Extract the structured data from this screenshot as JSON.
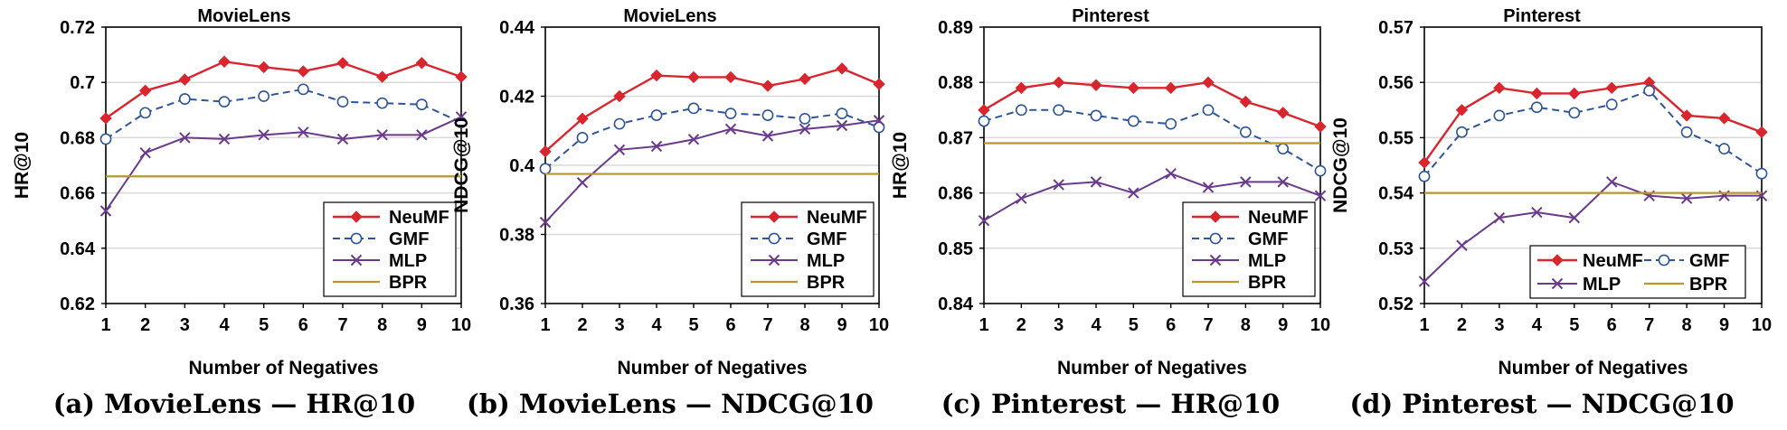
{
  "colors": {
    "neumf": "#d9262e",
    "gmf": "#2e5597",
    "mlp": "#6a3a8c",
    "bpr": "#b8962e"
  },
  "chart_data": [
    {
      "type": "line",
      "title": "MovieLens",
      "caption": "(a) MovieLens — HR@10",
      "xlabel": "Number of Negatives",
      "ylabel": "HR@10",
      "categories": [
        "1",
        "2",
        "3",
        "4",
        "5",
        "6",
        "7",
        "8",
        "9",
        "10"
      ],
      "ylim": [
        0.62,
        0.72
      ],
      "yticks": [
        "0.62",
        "0.64",
        "0.66",
        "0.68",
        "0.7",
        "0.72"
      ],
      "grid": true,
      "legend": "bottom-right",
      "legend_layout": "column",
      "series": [
        {
          "name": "NeuMF",
          "values": [
            0.687,
            0.697,
            0.701,
            0.7075,
            0.7055,
            0.704,
            0.707,
            0.702,
            0.707,
            0.702
          ]
        },
        {
          "name": "GMF",
          "values": [
            0.6795,
            0.689,
            0.694,
            0.693,
            0.695,
            0.6975,
            0.693,
            0.6925,
            0.692,
            0.6855
          ]
        },
        {
          "name": "MLP",
          "values": [
            0.6535,
            0.6745,
            0.68,
            0.6795,
            0.681,
            0.682,
            0.6795,
            0.681,
            0.681,
            0.6875
          ]
        },
        {
          "name": "BPR",
          "value": 0.666
        }
      ]
    },
    {
      "type": "line",
      "title": "MovieLens",
      "caption": "(b) MovieLens — NDCG@10",
      "xlabel": "Number of Negatives",
      "ylabel": "NDCG@10",
      "categories": [
        "1",
        "2",
        "3",
        "4",
        "5",
        "6",
        "7",
        "8",
        "9",
        "10"
      ],
      "ylim": [
        0.36,
        0.44
      ],
      "yticks": [
        "0.36",
        "0.38",
        "0.4",
        "0.42",
        "0.44"
      ],
      "grid": true,
      "legend": "bottom-right",
      "legend_layout": "column",
      "series": [
        {
          "name": "NeuMF",
          "values": [
            0.404,
            0.4135,
            0.42,
            0.426,
            0.4255,
            0.4255,
            0.423,
            0.425,
            0.428,
            0.4235
          ]
        },
        {
          "name": "GMF",
          "values": [
            0.399,
            0.408,
            0.412,
            0.4145,
            0.4165,
            0.415,
            0.4145,
            0.4135,
            0.415,
            0.411
          ]
        },
        {
          "name": "MLP",
          "values": [
            0.3835,
            0.395,
            0.4045,
            0.4055,
            0.4075,
            0.4105,
            0.4085,
            0.4105,
            0.4115,
            0.413
          ]
        },
        {
          "name": "BPR",
          "value": 0.3975
        }
      ]
    },
    {
      "type": "line",
      "title": "Pinterest",
      "caption": "(c) Pinterest — HR@10",
      "xlabel": "Number of Negatives",
      "ylabel": "HR@10",
      "categories": [
        "1",
        "2",
        "3",
        "4",
        "5",
        "6",
        "7",
        "8",
        "9",
        "10"
      ],
      "ylim": [
        0.84,
        0.89
      ],
      "yticks": [
        "0.84",
        "0.85",
        "0.86",
        "0.87",
        "0.88",
        "0.89"
      ],
      "grid": true,
      "legend": "bottom-right",
      "legend_layout": "column",
      "series": [
        {
          "name": "NeuMF",
          "values": [
            0.875,
            0.879,
            0.88,
            0.8795,
            0.879,
            0.879,
            0.88,
            0.8765,
            0.8745,
            0.872
          ]
        },
        {
          "name": "GMF",
          "values": [
            0.873,
            0.875,
            0.875,
            0.874,
            0.873,
            0.8725,
            0.875,
            0.871,
            0.868,
            0.864
          ]
        },
        {
          "name": "MLP",
          "values": [
            0.855,
            0.859,
            0.8615,
            0.862,
            0.86,
            0.8635,
            0.861,
            0.862,
            0.862,
            0.8595
          ]
        },
        {
          "name": "BPR",
          "value": 0.869
        }
      ]
    },
    {
      "type": "line",
      "title": "Pinterest",
      "caption": "(d) Pinterest — NDCG@10",
      "xlabel": "Number of Negatives",
      "ylabel": "NDCG@10",
      "categories": [
        "1",
        "2",
        "3",
        "4",
        "5",
        "6",
        "7",
        "8",
        "9",
        "10"
      ],
      "ylim": [
        0.52,
        0.57
      ],
      "yticks": [
        "0.52",
        "0.53",
        "0.54",
        "0.55",
        "0.56",
        "0.57"
      ],
      "grid": true,
      "legend": "bottom-right",
      "legend_layout": "grid-2x2",
      "series": [
        {
          "name": "NeuMF",
          "values": [
            0.5455,
            0.555,
            0.559,
            0.558,
            0.558,
            0.559,
            0.56,
            0.554,
            0.5535,
            0.551
          ]
        },
        {
          "name": "GMF",
          "values": [
            0.543,
            0.551,
            0.554,
            0.5555,
            0.5545,
            0.556,
            0.5585,
            0.551,
            0.548,
            0.5435
          ]
        },
        {
          "name": "MLP",
          "values": [
            0.524,
            0.5305,
            0.5355,
            0.5365,
            0.5355,
            0.542,
            0.5395,
            0.539,
            0.5395,
            0.5395
          ]
        },
        {
          "name": "BPR",
          "value": 0.54
        }
      ]
    }
  ]
}
